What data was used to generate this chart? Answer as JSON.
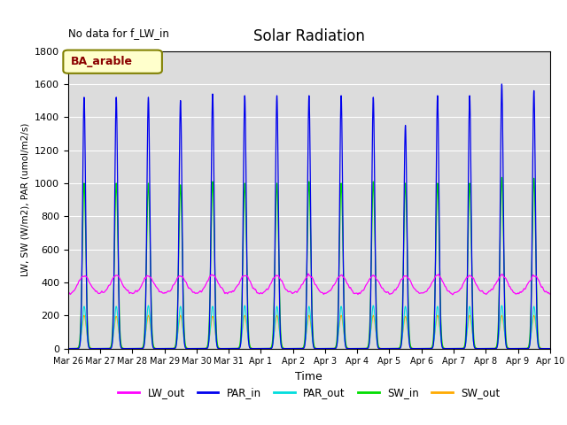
{
  "title": "Solar Radiation",
  "no_data_text": "No data for f_LW_in",
  "legend_label": "BA_arable",
  "ylabel": "LW, SW (W/m2), PAR (umol/m2/s)",
  "xlabel": "Time",
  "ylim": [
    0,
    1800
  ],
  "series": {
    "LW_out": {
      "color": "#ff00ff",
      "label": "LW_out"
    },
    "PAR_in": {
      "color": "#0000ee",
      "label": "PAR_in"
    },
    "PAR_out": {
      "color": "#00dddd",
      "label": "PAR_out"
    },
    "SW_in": {
      "color": "#00dd00",
      "label": "SW_in"
    },
    "SW_out": {
      "color": "#ffaa00",
      "label": "SW_out"
    }
  },
  "n_days": 15,
  "background_color": "#dcdcdc",
  "grid_color": "white",
  "figsize": [
    6.4,
    4.8
  ],
  "dpi": 100,
  "par_in_peaks": [
    1520,
    1520,
    1520,
    1500,
    1540,
    1530,
    1530,
    1530,
    1530,
    1520,
    1350,
    1530,
    1530,
    1600,
    1560
  ],
  "sw_in_peaks": [
    1000,
    1000,
    1000,
    990,
    1010,
    1000,
    1000,
    1010,
    1000,
    1010,
    1000,
    1000,
    1000,
    1035,
    1030
  ],
  "par_out_peaks": [
    255,
    255,
    260,
    255,
    255,
    260,
    255,
    255,
    255,
    260,
    255,
    255,
    255,
    260,
    255
  ],
  "sw_out_peaks": [
    200,
    195,
    200,
    200,
    195,
    200,
    200,
    200,
    200,
    200,
    195,
    200,
    200,
    200,
    200
  ],
  "lw_base": 330,
  "lw_bump": 110,
  "tick_labels": [
    "Mar 26",
    "Mar 27",
    "Mar 28",
    "Mar 29",
    "Mar 30",
    "Mar 31",
    "Apr 1",
    "Apr 2",
    "Apr 3",
    "Apr 4",
    "Apr 5",
    "Apr 6",
    "Apr 7",
    "Apr 8",
    "Apr 9",
    "Apr 10"
  ]
}
